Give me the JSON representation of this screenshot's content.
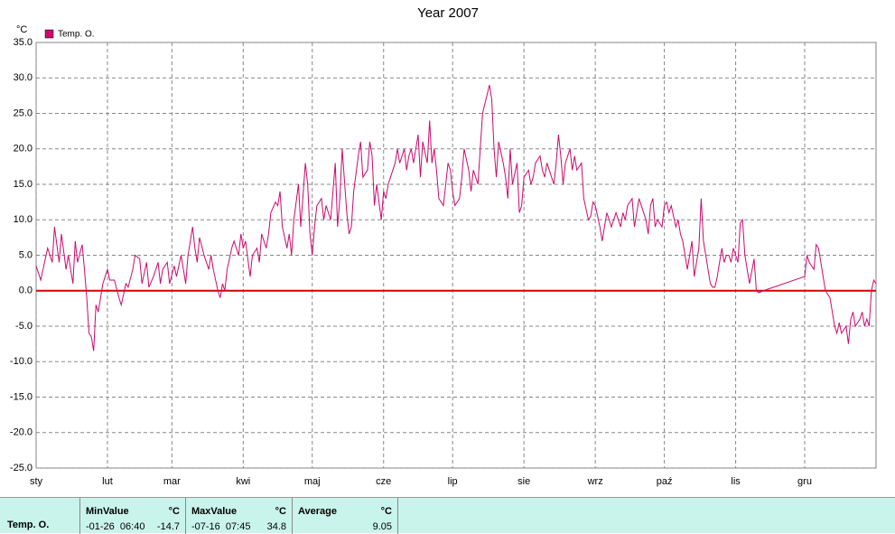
{
  "chart_data": {
    "type": "line",
    "title": "Year 2007",
    "ylabel": "°C",
    "xlim": [
      0,
      365
    ],
    "xticks": [
      {
        "value": 0,
        "label": "sty"
      },
      {
        "value": 31,
        "label": "lut"
      },
      {
        "value": 59,
        "label": "mar"
      },
      {
        "value": 90,
        "label": "kwi"
      },
      {
        "value": 120,
        "label": "maj"
      },
      {
        "value": 151,
        "label": "cze"
      },
      {
        "value": 181,
        "label": "lip"
      },
      {
        "value": 212,
        "label": "sie"
      },
      {
        "value": 243,
        "label": "wrz"
      },
      {
        "value": 273,
        "label": "paź"
      },
      {
        "value": 304,
        "label": "lis"
      },
      {
        "value": 334,
        "label": "gru"
      }
    ],
    "ylim": [
      -25,
      35
    ],
    "yticks": [
      {
        "value": -25,
        "label": "-25.0"
      },
      {
        "value": -20,
        "label": "-20.0"
      },
      {
        "value": -15,
        "label": "-15.0"
      },
      {
        "value": -10,
        "label": "-10.0"
      },
      {
        "value": -5,
        "label": "-5.0"
      },
      {
        "value": 0,
        "label": "0.0"
      },
      {
        "value": 5,
        "label": "5.0"
      },
      {
        "value": 10,
        "label": "10.0"
      },
      {
        "value": 15,
        "label": "15.0"
      },
      {
        "value": 20,
        "label": "20.0"
      },
      {
        "value": 25,
        "label": "25.0"
      },
      {
        "value": 30,
        "label": "30.0"
      },
      {
        "value": 35,
        "label": "35.0"
      }
    ],
    "grid": true,
    "reference_line": {
      "value": 0,
      "color": "#d40000"
    },
    "x": [
      0,
      2,
      3,
      5,
      7,
      8,
      10,
      11,
      13,
      14,
      16,
      17,
      18,
      20,
      21,
      22,
      23,
      24,
      25,
      26,
      27,
      29,
      31,
      32,
      34,
      36,
      37,
      39,
      40,
      42,
      43,
      45,
      46,
      48,
      49,
      51,
      53,
      54,
      55,
      57,
      58,
      60,
      61,
      63,
      64,
      65,
      66,
      68,
      69,
      70,
      71,
      73,
      75,
      76,
      77,
      79,
      80,
      81,
      82,
      83,
      85,
      86,
      88,
      89,
      90,
      91,
      93,
      94,
      96,
      97,
      98,
      100,
      101,
      102,
      104,
      105,
      106,
      107,
      109,
      110,
      111,
      112,
      114,
      115,
      117,
      118,
      119,
      120,
      121,
      122,
      124,
      125,
      126,
      128,
      129,
      130,
      131,
      132,
      133,
      135,
      136,
      137,
      138,
      140,
      141,
      142,
      144,
      145,
      146,
      147,
      148,
      150,
      151,
      152,
      153,
      155,
      156,
      157,
      158,
      160,
      161,
      162,
      163,
      164,
      166,
      167,
      168,
      170,
      171,
      172,
      173,
      174,
      175,
      177,
      178,
      179,
      180,
      181,
      182,
      184,
      185,
      186,
      188,
      189,
      190,
      192,
      193,
      194,
      197,
      198,
      199,
      200,
      201,
      203,
      204,
      205,
      206,
      207,
      209,
      210,
      211,
      212,
      214,
      215,
      216,
      217,
      219,
      220,
      221,
      222,
      223,
      225,
      226,
      227,
      228,
      229,
      230,
      232,
      233,
      234,
      235,
      237,
      238,
      240,
      241,
      242,
      243,
      245,
      246,
      247,
      248,
      249,
      250,
      252,
      253,
      254,
      255,
      256,
      257,
      259,
      260,
      261,
      262,
      263,
      265,
      266,
      267,
      268,
      269,
      270,
      272,
      273,
      274,
      275,
      276,
      278,
      279,
      280,
      281,
      282,
      283,
      285,
      286,
      287,
      288,
      289,
      290,
      292,
      293,
      294,
      295,
      296,
      298,
      299,
      300,
      301,
      302,
      303,
      305,
      306,
      307,
      308,
      309,
      310,
      312,
      313,
      314,
      316,
      334,
      335,
      336,
      338,
      339,
      340,
      341,
      342,
      343,
      345,
      346,
      347,
      348,
      349,
      350,
      352,
      353,
      354,
      355,
      356,
      358,
      359,
      360,
      361,
      362,
      363,
      364,
      365
    ],
    "series": [
      {
        "name": "Temp. O.",
        "color": "#cc0a6e",
        "values": [
          3.5,
          1.5,
          3,
          6,
          4,
          9,
          4,
          8,
          3,
          5,
          1,
          7,
          4,
          6.5,
          3,
          -1,
          -6,
          -6.5,
          -8.5,
          -2,
          -3,
          1,
          3,
          1.5,
          1.5,
          -1,
          -2,
          1,
          0.5,
          3,
          5,
          4.5,
          1,
          4,
          0.5,
          2,
          4,
          1,
          3,
          4,
          1,
          3.5,
          2,
          5,
          3,
          1,
          5,
          9,
          6,
          4,
          7.5,
          5,
          3,
          5,
          3,
          0,
          -1,
          1,
          0,
          3,
          6,
          7,
          5,
          8,
          6,
          7,
          2,
          5,
          6,
          4,
          8,
          6,
          8,
          11,
          12.5,
          12,
          14,
          9,
          6,
          8,
          5,
          10,
          15,
          9,
          18,
          15,
          8,
          5,
          9,
          12,
          13,
          10,
          12,
          10,
          14,
          18,
          9,
          13,
          20,
          11,
          8,
          9,
          14,
          19,
          21,
          16,
          17,
          21,
          19,
          12,
          15,
          10,
          14,
          13,
          15,
          17,
          18,
          20,
          18,
          20,
          17,
          19,
          20,
          18,
          22,
          16,
          21,
          18,
          24,
          18,
          20,
          17,
          13,
          12,
          15,
          18,
          17,
          14,
          12,
          13,
          16,
          20,
          17,
          14,
          17,
          15,
          20,
          25,
          29,
          27,
          20,
          16,
          21,
          18,
          16,
          13,
          20,
          15,
          18,
          11,
          12,
          16,
          17,
          15,
          16,
          18,
          19,
          17,
          16,
          18,
          17,
          15,
          18,
          22,
          19,
          15,
          18,
          20,
          17,
          19,
          17,
          18,
          13,
          10,
          10.5,
          12.5,
          12,
          9,
          7,
          9,
          11,
          10,
          9,
          11,
          10,
          9,
          11,
          10,
          12,
          13,
          9,
          11,
          13,
          12,
          10,
          8,
          12,
          13,
          9,
          10,
          9,
          12,
          12.5,
          11,
          12,
          9,
          10,
          8,
          7,
          5,
          3,
          7,
          2,
          4,
          6,
          13,
          7,
          3,
          1,
          0.5,
          0.5,
          2,
          6,
          4,
          5,
          5,
          4,
          6,
          4,
          9.5,
          10,
          5,
          3,
          1,
          4.5,
          0,
          -0.3,
          0,
          2,
          5,
          4,
          3,
          6.5,
          6,
          4,
          2,
          0,
          -1,
          -3,
          -5,
          -6,
          -4.5,
          -6,
          -5,
          -7.5,
          -4,
          -3,
          -5,
          -4,
          -3,
          -5,
          -4,
          -5,
          0,
          1.5,
          1
        ]
      }
    ]
  },
  "stats": {
    "series": "Temp. O.",
    "columns": [
      {
        "title": "MinValue",
        "unit": "°C",
        "time": "-01-26  06:40",
        "value": -14.7
      },
      {
        "title": "MaxValue",
        "unit": "°C",
        "time": "-07-16  07:45",
        "value": 34.8
      },
      {
        "title": "Average",
        "unit": "°C",
        "value": 9.05
      }
    ]
  }
}
